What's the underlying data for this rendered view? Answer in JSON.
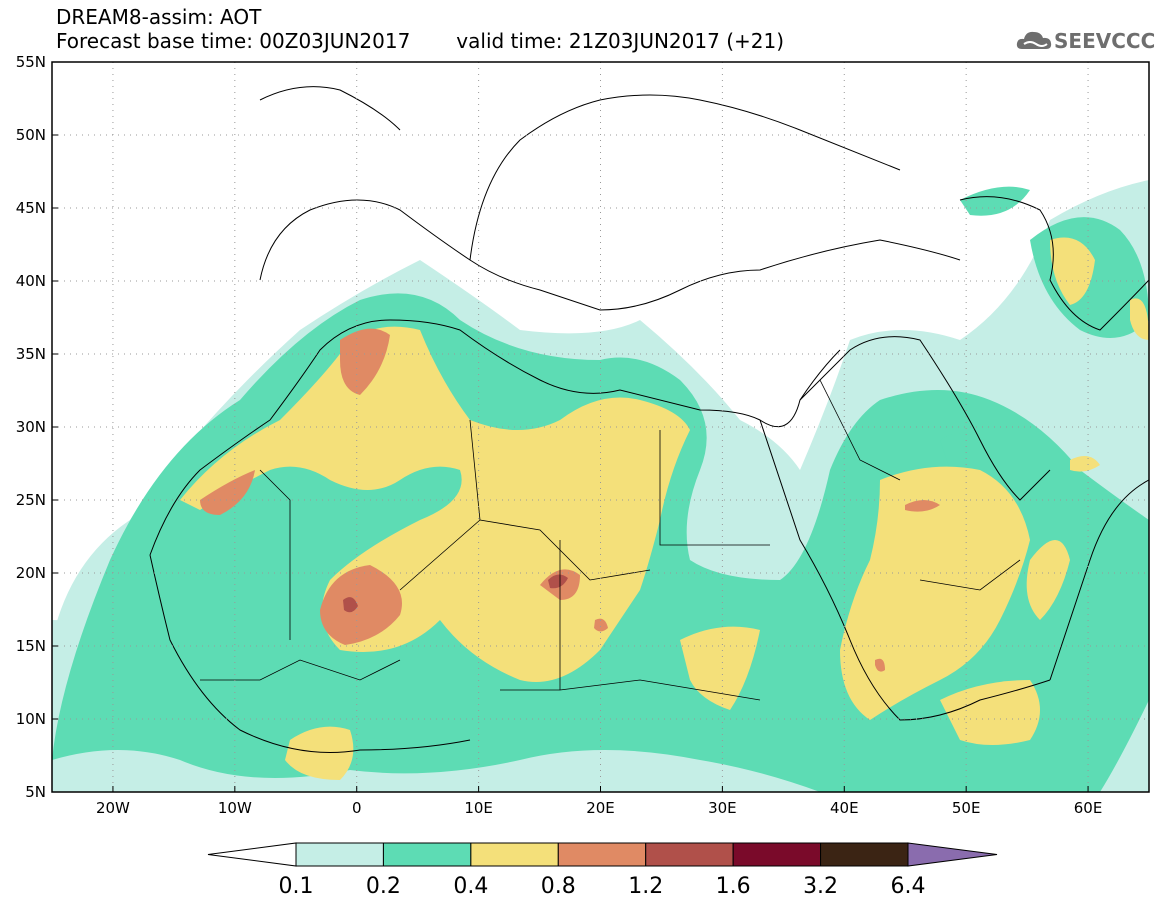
{
  "header": {
    "title_line1": "DREAM8-assim: AOT",
    "base_time": "Forecast base time: 00Z03JUN2017",
    "valid_time": "valid time: 21Z03JUN2017 (+21)",
    "logo_text": "SEEVCCC"
  },
  "map": {
    "lon_range": [
      -25,
      65
    ],
    "lat_range": [
      5,
      55
    ],
    "lat_ticks": [
      "5N",
      "10N",
      "15N",
      "20N",
      "25N",
      "30N",
      "35N",
      "40N",
      "45N",
      "50N",
      "55N"
    ],
    "lat_values": [
      5,
      10,
      15,
      20,
      25,
      30,
      35,
      40,
      45,
      50,
      55
    ],
    "lon_ticks": [
      "20W",
      "10W",
      "0",
      "10E",
      "20E",
      "30E",
      "40E",
      "50E",
      "60E"
    ],
    "lon_values": [
      -20,
      -10,
      0,
      10,
      20,
      30,
      40,
      50,
      60
    ],
    "grid": "dotted"
  },
  "colorbar": {
    "labels": [
      "0.1",
      "0.2",
      "0.4",
      "0.8",
      "1.2",
      "1.6",
      "3.2",
      "6.4"
    ],
    "colors": [
      "#ffffff",
      "#c5eee6",
      "#5ddcb4",
      "#f4e07a",
      "#e08a64",
      "#b0504a",
      "#7a0a2a",
      "#3b2414",
      "#8a6cae"
    ]
  },
  "colors": {
    "c01": "#c5eee6",
    "c02": "#5ddcb4",
    "c04": "#f4e07a",
    "c08": "#e08a64",
    "c12": "#b0504a",
    "c16": "#7a0a2a"
  }
}
